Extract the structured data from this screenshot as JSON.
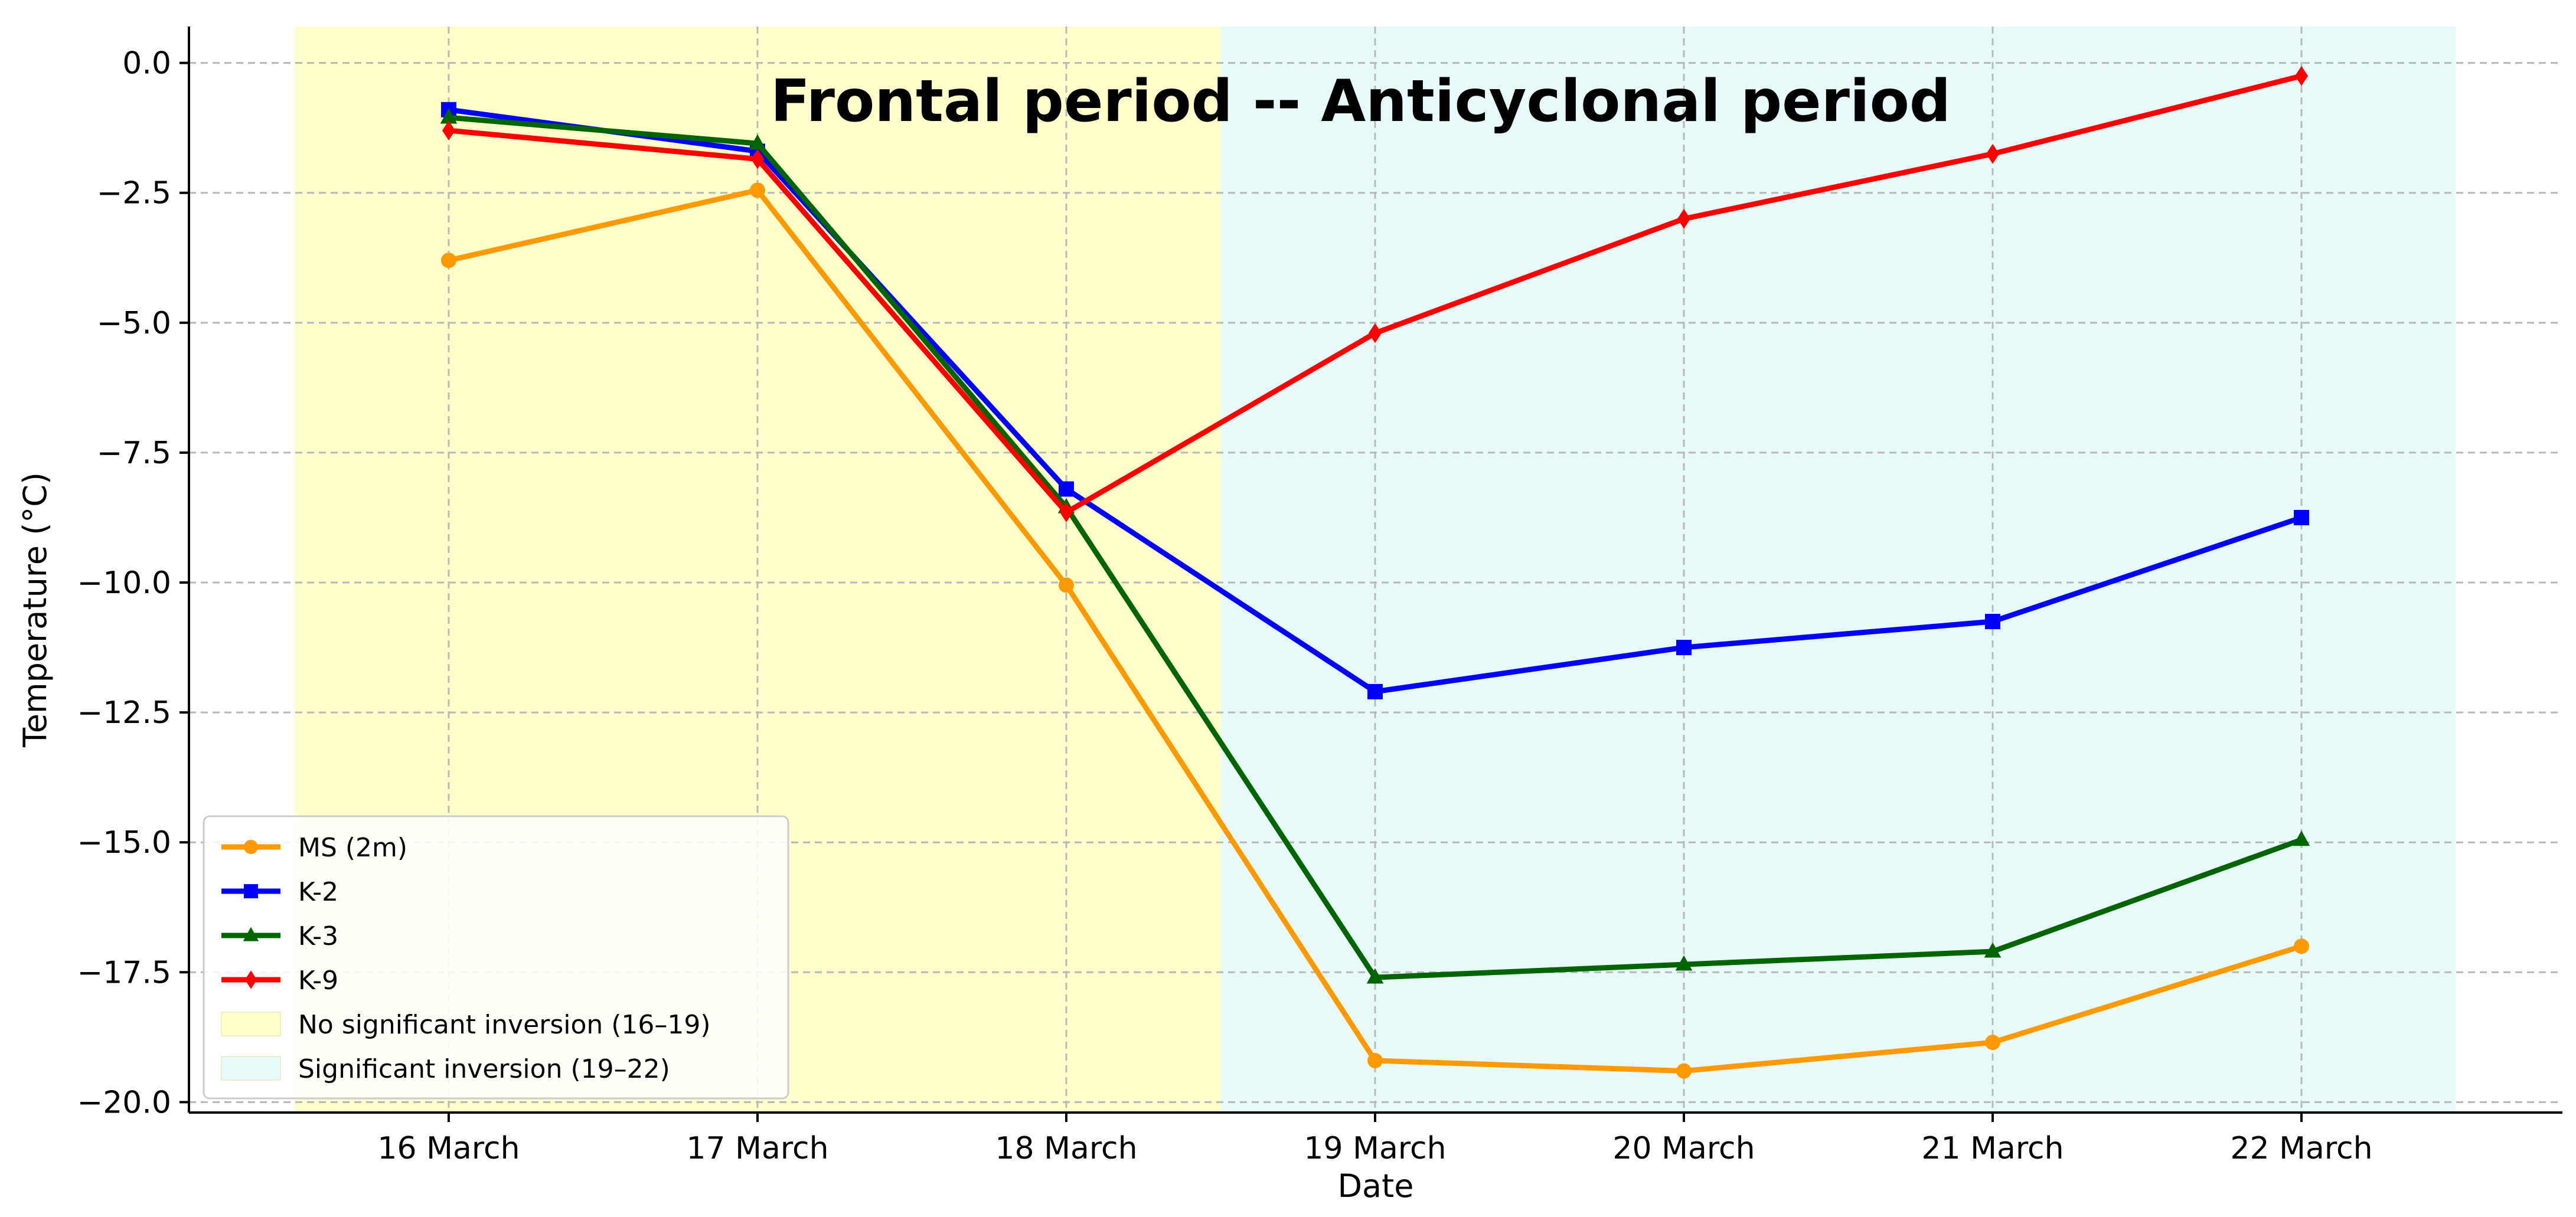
{
  "chart_data": {
    "type": "line",
    "categories": [
      "16 March",
      "17 March",
      "18 March",
      "19 March",
      "20 March",
      "21 March",
      "22 March"
    ],
    "xlabel": "Date",
    "ylabel": "Temperature (°C)",
    "ylim": [
      -20.2,
      0.7
    ],
    "yticks": [
      0.0,
      -2.5,
      -5.0,
      -7.5,
      -10.0,
      -12.5,
      -15.0,
      -17.5,
      -20.0
    ],
    "ytick_labels": [
      "0.0",
      "−2.5",
      "−5.0",
      "−7.5",
      "−10.0",
      "−12.5",
      "−15.0",
      "−17.5",
      "−20.0"
    ],
    "grid": true,
    "annotation": "Frontal period --  Anticyclonal period",
    "series": [
      {
        "name": "MS (2m)",
        "color": "#FF9900",
        "marker": "circle",
        "values": [
          -3.8,
          -2.45,
          -10.05,
          -19.2,
          -19.4,
          -18.85,
          -17.0
        ]
      },
      {
        "name": "K-2",
        "color": "#0000FF",
        "marker": "square",
        "values": [
          -0.9,
          -1.7,
          -8.2,
          -12.1,
          -11.25,
          -10.75,
          -8.75
        ]
      },
      {
        "name": "K-3",
        "color": "#006400",
        "marker": "triangle",
        "values": [
          -1.05,
          -1.55,
          -8.55,
          -17.6,
          -17.35,
          -17.1,
          -14.95
        ]
      },
      {
        "name": "K-9",
        "color": "#FF0000",
        "marker": "diamond",
        "values": [
          -1.3,
          -1.85,
          -8.65,
          -5.2,
          -3.0,
          -1.75,
          -0.25
        ]
      }
    ],
    "shaded_regions": [
      {
        "name": "No significant inversion (16–19)",
        "color": "#FFFFCC",
        "x_start": "15.5 March",
        "x_end": "18.5 March",
        "start_index": -0.5,
        "end_index": 2.5
      },
      {
        "name": "Significant inversion  (19–22)",
        "color": "#E8F9F9",
        "x_start": "18.5 March",
        "x_end": "22.5 March",
        "start_index": 2.5,
        "end_index": 6.5
      }
    ],
    "legend_position": "lower-left"
  }
}
